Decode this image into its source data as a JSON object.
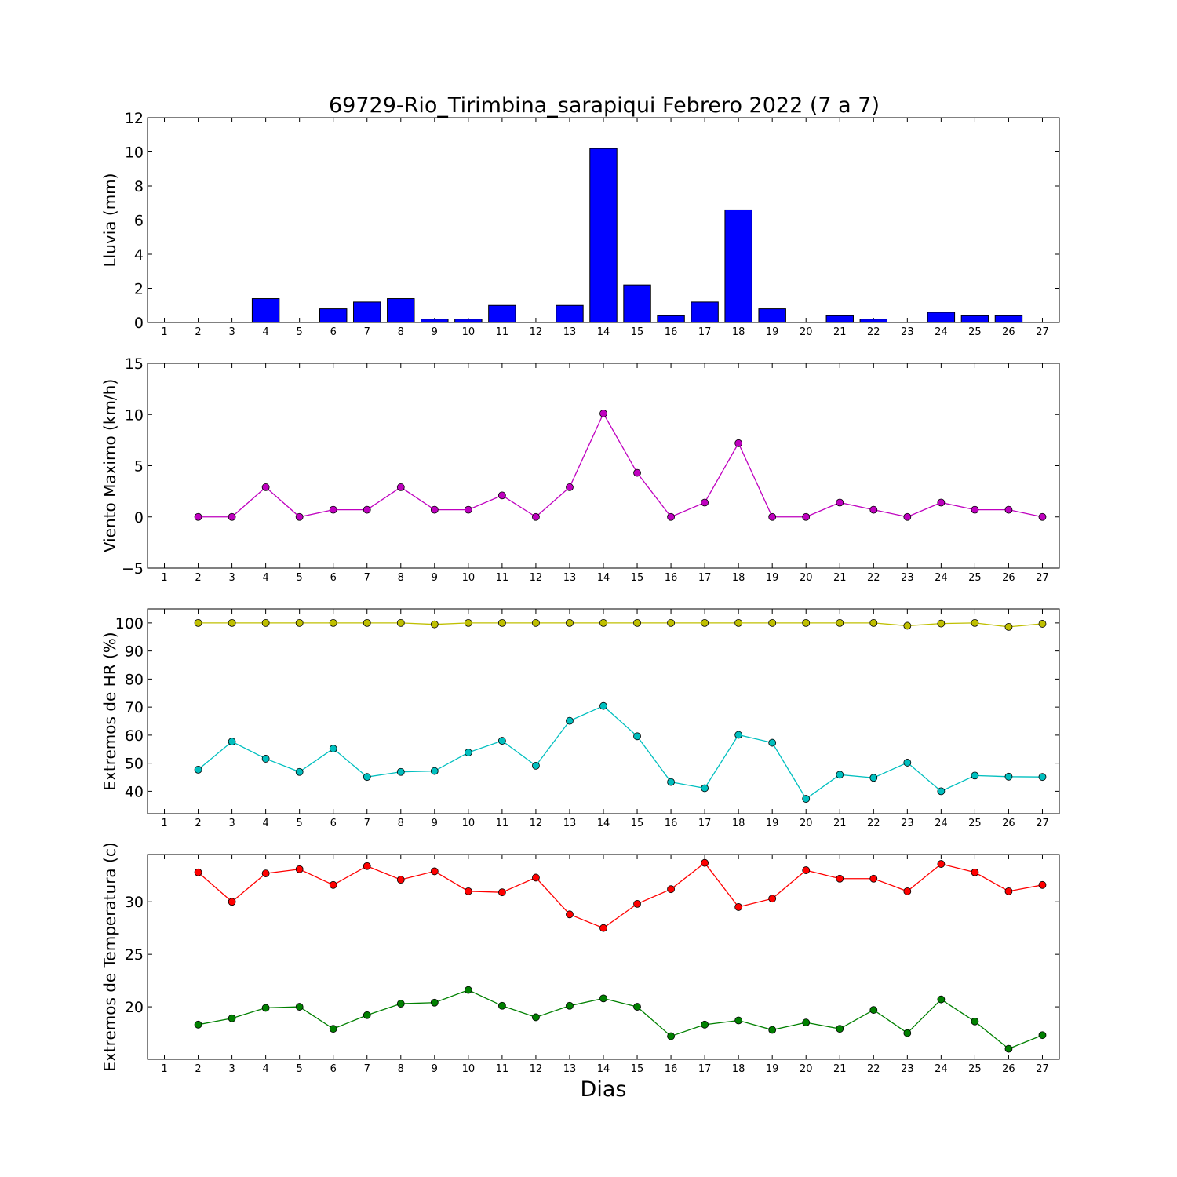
{
  "chart_data": {
    "title": "69729-Rio_Tirimbina_sarapiqui Febrero 2022  (7 a 7)",
    "xlabel": "Dias",
    "days": [
      1,
      2,
      3,
      4,
      5,
      6,
      7,
      8,
      9,
      10,
      11,
      12,
      13,
      14,
      15,
      16,
      17,
      18,
      19,
      20,
      21,
      22,
      23,
      24,
      25,
      26,
      27
    ],
    "colors": {
      "bar": "#0000ff",
      "wind": "#bf00bf",
      "hr_max": "#bfbf00",
      "hr_min": "#00bfbf",
      "t_max": "#ff0000",
      "t_min": "#008000"
    },
    "panels": [
      {
        "type": "bar",
        "ylabel": "Lluvia (mm)",
        "ylim": [
          0,
          12
        ],
        "yticks": [
          0,
          2,
          4,
          6,
          8,
          10,
          12
        ],
        "ytick_labels": [
          "0",
          "2",
          "4",
          "6",
          "8",
          "10",
          "12"
        ],
        "series": [
          {
            "x": [
              2,
              3,
              4,
              5,
              6,
              7,
              8,
              9,
              10,
              11,
              12,
              13,
              14,
              15,
              16,
              17,
              18,
              19,
              20,
              21,
              22,
              23,
              24,
              25,
              26
            ],
            "values": [
              0,
              0,
              1.4,
              0,
              0.8,
              1.2,
              1.4,
              0.2,
              0.2,
              1.0,
              0,
              1.0,
              10.2,
              2.2,
              0.4,
              1.2,
              6.6,
              0.8,
              0,
              0.4,
              0.2,
              0,
              0.6,
              0.4,
              0.4
            ]
          }
        ]
      },
      {
        "type": "line",
        "ylabel": "Viento Maximo (km/h)",
        "ylim": [
          -5,
          15
        ],
        "yticks": [
          -5,
          0,
          5,
          10,
          15
        ],
        "ytick_labels": [
          "−5",
          "0",
          "5",
          "10",
          "15"
        ],
        "series": [
          {
            "color_key": "wind",
            "x": [
              2,
              3,
              4,
              5,
              6,
              7,
              8,
              9,
              10,
              11,
              12,
              13,
              14,
              15,
              16,
              17,
              18,
              19,
              20,
              21,
              22,
              23,
              24,
              25,
              26,
              27
            ],
            "values": [
              0,
              0,
              2.9,
              0,
              0.7,
              0.7,
              2.9,
              0.7,
              0.7,
              2.1,
              0,
              2.9,
              10.1,
              4.3,
              0,
              1.4,
              7.2,
              0,
              0,
              1.4,
              0.7,
              0,
              1.4,
              0.7,
              0.7,
              0
            ]
          }
        ]
      },
      {
        "type": "line",
        "ylabel": "Extremos de HR (%)",
        "ylim": [
          32,
          105
        ],
        "yticks": [
          40,
          50,
          60,
          70,
          80,
          90,
          100
        ],
        "ytick_labels": [
          "40",
          "50",
          "60",
          "70",
          "80",
          "90",
          "100"
        ],
        "series": [
          {
            "color_key": "hr_max",
            "x": [
              2,
              3,
              4,
              5,
              6,
              7,
              8,
              9,
              10,
              11,
              12,
              13,
              14,
              15,
              16,
              17,
              18,
              19,
              20,
              21,
              22,
              23,
              24,
              25,
              26,
              27
            ],
            "values": [
              100,
              100,
              100,
              100,
              100,
              100,
              100,
              99.5,
              100,
              100,
              100,
              100,
              100,
              100,
              100,
              100,
              100,
              100,
              100,
              100,
              100,
              99,
              99.8,
              100,
              98.6,
              99.7
            ]
          },
          {
            "color_key": "hr_min",
            "x": [
              2,
              3,
              4,
              5,
              6,
              7,
              8,
              9,
              10,
              11,
              12,
              13,
              14,
              15,
              16,
              17,
              18,
              19,
              20,
              21,
              22,
              23,
              24,
              25,
              26,
              27
            ],
            "values": [
              47.7,
              57.7,
              51.6,
              46.9,
              55.2,
              45.1,
              46.9,
              47.2,
              53.8,
              58.0,
              49.1,
              65.1,
              70.4,
              59.6,
              43.3,
              41.1,
              60.1,
              57.3,
              37.3,
              45.9,
              44.8,
              50.2,
              40.0,
              45.6,
              45.2,
              45.1
            ]
          }
        ]
      },
      {
        "type": "line",
        "ylabel": "Extremos de Temperatura (c)",
        "ylim": [
          15,
          34.5
        ],
        "yticks": [
          20,
          25,
          30
        ],
        "ytick_labels": [
          "20",
          "25",
          "30"
        ],
        "series": [
          {
            "color_key": "t_max",
            "x": [
              2,
              3,
              4,
              5,
              6,
              7,
              8,
              9,
              10,
              11,
              12,
              13,
              14,
              15,
              16,
              17,
              18,
              19,
              20,
              21,
              22,
              23,
              24,
              25,
              26,
              27
            ],
            "values": [
              32.8,
              30.0,
              32.7,
              33.1,
              31.6,
              33.4,
              32.1,
              32.9,
              31.0,
              30.9,
              32.3,
              28.8,
              27.5,
              29.8,
              31.2,
              33.7,
              29.5,
              30.3,
              33.0,
              32.2,
              32.2,
              31.0,
              33.6,
              32.8,
              31.0,
              31.6
            ]
          },
          {
            "color_key": "t_min",
            "x": [
              2,
              3,
              4,
              5,
              6,
              7,
              8,
              9,
              10,
              11,
              12,
              13,
              14,
              15,
              16,
              17,
              18,
              19,
              20,
              21,
              22,
              23,
              24,
              25,
              26,
              27
            ],
            "values": [
              18.3,
              18.9,
              19.9,
              20.0,
              17.9,
              19.2,
              20.3,
              20.4,
              21.6,
              20.1,
              19.0,
              20.1,
              20.8,
              20.0,
              17.2,
              18.3,
              18.7,
              17.8,
              18.5,
              17.9,
              19.7,
              17.5,
              20.7,
              18.6,
              16.0,
              17.3
            ]
          }
        ]
      }
    ]
  }
}
